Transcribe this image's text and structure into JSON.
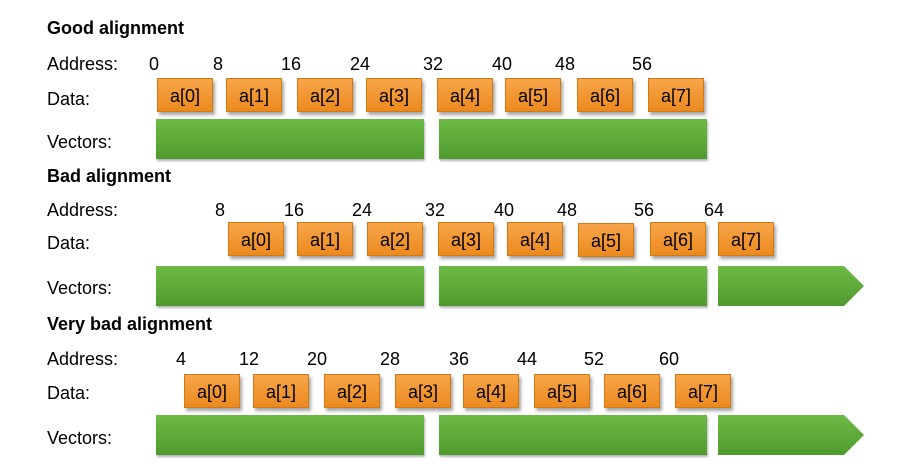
{
  "labels": {
    "address": "Address:",
    "data": "Data:",
    "vectors": "Vectors:"
  },
  "colors": {
    "cell_fill": "#ef8e24",
    "vector_fill": "#59a534"
  },
  "sections": [
    {
      "title": "Good alignment",
      "addresses": [
        "0",
        "8",
        "16",
        "24",
        "32",
        "40",
        "48",
        "56"
      ],
      "cells": [
        "a[0]",
        "a[1]",
        "a[2]",
        "a[3]",
        "a[4]",
        "a[5]",
        "a[6]",
        "a[7]"
      ],
      "vector_count": 2
    },
    {
      "title": "Bad alignment",
      "addresses": [
        "8",
        "16",
        "24",
        "32",
        "40",
        "48",
        "56",
        "64"
      ],
      "cells": [
        "a[0]",
        "a[1]",
        "a[2]",
        "a[3]",
        "a[4]",
        "a[5]",
        "a[6]",
        "a[7]"
      ],
      "vector_count": 3
    },
    {
      "title": "Very bad alignment",
      "addresses": [
        "4",
        "12",
        "20",
        "28",
        "36",
        "44",
        "52",
        "60"
      ],
      "cells": [
        "a[0]",
        "a[1]",
        "a[2]",
        "a[3]",
        "a[4]",
        "a[5]",
        "a[6]",
        "a[7]"
      ],
      "vector_count": 3
    }
  ]
}
